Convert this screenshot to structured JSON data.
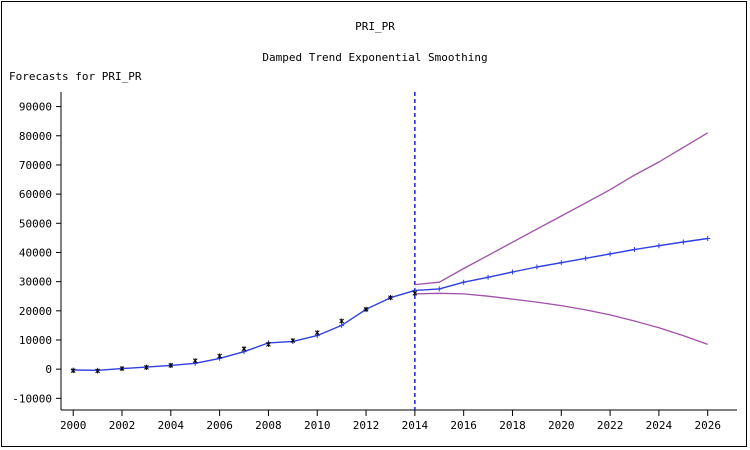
{
  "chart_data": {
    "type": "line",
    "title": "PRI_PR",
    "subtitle": "Damped Trend Exponential Smoothing",
    "ylabel": "Forecasts for PRI_PR",
    "xlabel": "",
    "xlim": [
      1999.5,
      2027.2
    ],
    "ylim": [
      -14000,
      95000
    ],
    "x_ticks": [
      2000,
      2002,
      2004,
      2006,
      2008,
      2010,
      2012,
      2014,
      2016,
      2018,
      2020,
      2022,
      2024,
      2026
    ],
    "y_ticks": [
      -10000,
      0,
      10000,
      20000,
      30000,
      40000,
      50000,
      60000,
      70000,
      80000,
      90000
    ],
    "forecast_start": 2014,
    "grid": false,
    "colors": {
      "observed": "#000000",
      "forecast": "#2f3fe0",
      "confidence": "#a050a8",
      "divider": "#1010d0",
      "axis": "#000000"
    },
    "series": [
      {
        "kind": "observed",
        "x": [
          2000,
          2001,
          2002,
          2003,
          2004,
          2005,
          2006,
          2007,
          2008,
          2009,
          2010,
          2011,
          2012,
          2013,
          2014
        ],
        "values": [
          -500,
          -600,
          200,
          600,
          1300,
          2900,
          4500,
          7000,
          8500,
          9800,
          12500,
          16500,
          20500,
          24500,
          26000
        ]
      },
      {
        "kind": "forecast",
        "x": [
          2000,
          2001,
          2002,
          2003,
          2004,
          2005,
          2006,
          2007,
          2008,
          2009,
          2010,
          2011,
          2012,
          2013,
          2014,
          2015,
          2016,
          2017,
          2018,
          2019,
          2020,
          2021,
          2022,
          2023,
          2024,
          2025,
          2026
        ],
        "values": [
          -300,
          -400,
          200,
          700,
          1300,
          2000,
          3700,
          6000,
          9000,
          9500,
          11500,
          15000,
          20500,
          24500,
          27000,
          27500,
          29800,
          31500,
          33300,
          35000,
          36500,
          38000,
          39500,
          41000,
          42300,
          43600,
          44800
        ]
      },
      {
        "kind": "upper",
        "x": [
          2014,
          2015,
          2016,
          2017,
          2018,
          2019,
          2020,
          2021,
          2022,
          2023,
          2024,
          2025,
          2026
        ],
        "values": [
          29000,
          29800,
          34500,
          39000,
          43500,
          48000,
          52500,
          57000,
          61500,
          66500,
          71000,
          76000,
          81000
        ]
      },
      {
        "kind": "lower",
        "x": [
          2014,
          2015,
          2016,
          2017,
          2018,
          2019,
          2020,
          2021,
          2022,
          2023,
          2024,
          2025,
          2026
        ],
        "values": [
          25800,
          26000,
          25800,
          25000,
          24000,
          23000,
          21800,
          20300,
          18600,
          16500,
          14200,
          11500,
          8500
        ]
      }
    ]
  }
}
